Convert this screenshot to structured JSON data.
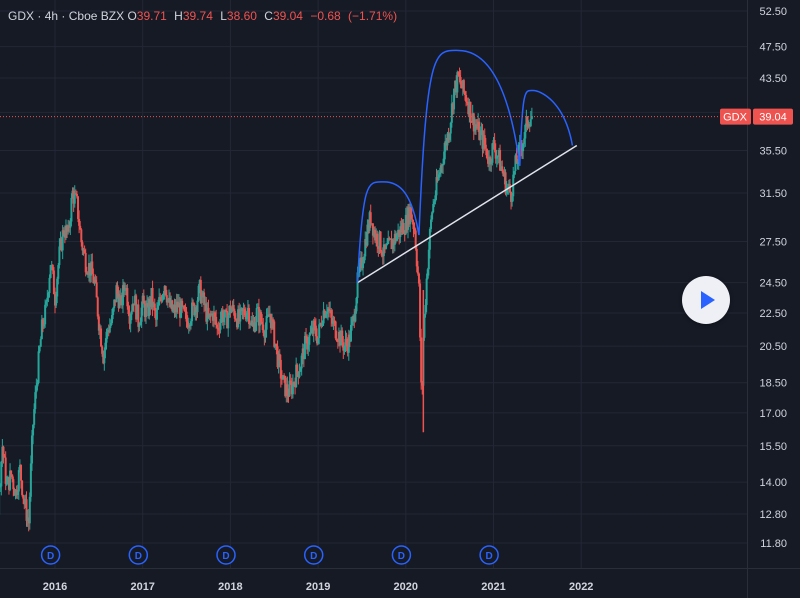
{
  "legend": {
    "symbol": "GDX",
    "interval": "4h",
    "exchange": "Cboe BZX",
    "open_label": "O",
    "open": "39.71",
    "high_label": "H",
    "high": "39.74",
    "low_label": "L",
    "low": "38.60",
    "close_label": "C",
    "close": "39.04",
    "change": "−0.68",
    "change_pct": "(−1.71%)"
  },
  "price_tag": {
    "symbol": "GDX",
    "value": "39.04"
  },
  "colors": {
    "up": "#26a69a",
    "down": "#ef5350",
    "background": "#161a25",
    "axis_text": "#d1d4dc",
    "arc": "#2962ff",
    "trendline": "#e0e3eb",
    "dividend": "#2962ff"
  },
  "icons": {
    "play": "play-icon"
  },
  "chart_data": {
    "type": "candlestick",
    "scale": "log",
    "y_ticks": [
      52.5,
      47.5,
      43.5,
      39.5,
      35.5,
      31.5,
      27.5,
      24.5,
      22.5,
      20.5,
      18.5,
      17.0,
      15.5,
      14.0,
      12.8,
      11.8
    ],
    "y_tick_labels": [
      "52.50",
      "47.50",
      "43.50",
      "39.50",
      "35.50",
      "31.50",
      "27.50",
      "24.50",
      "22.50",
      "20.50",
      "18.50",
      "17.00",
      "15.50",
      "14.00",
      "12.80",
      "11.80"
    ],
    "x_ticks": [
      "2016",
      "2017",
      "2018",
      "2019",
      "2020",
      "2021",
      "2022"
    ],
    "dividend_markers": [
      "D",
      "D",
      "D",
      "D",
      "D",
      "D"
    ],
    "dividend_years": [
      2015.95,
      2016.95,
      2017.95,
      2018.95,
      2019.95,
      2020.95
    ],
    "last_price": 39.04,
    "price_path": [
      [
        2015.0,
        20.5
      ],
      [
        2015.1,
        19.0
      ],
      [
        2015.15,
        15.5
      ],
      [
        2015.2,
        14.0
      ],
      [
        2015.25,
        13.5
      ],
      [
        2015.3,
        14.5
      ],
      [
        2015.35,
        13.0
      ],
      [
        2015.4,
        15.5
      ],
      [
        2015.45,
        13.8
      ],
      [
        2015.5,
        14.3
      ],
      [
        2015.55,
        13.6
      ],
      [
        2015.6,
        14.5
      ],
      [
        2015.65,
        13.2
      ],
      [
        2015.7,
        12.5
      ],
      [
        2015.75,
        16.5
      ],
      [
        2015.8,
        19.0
      ],
      [
        2015.85,
        21.5
      ],
      [
        2015.9,
        22.8
      ],
      [
        2015.95,
        26.0
      ],
      [
        2016.0,
        23.5
      ],
      [
        2016.05,
        26.5
      ],
      [
        2016.1,
        28.5
      ],
      [
        2016.15,
        28.0
      ],
      [
        2016.2,
        31.5
      ],
      [
        2016.25,
        30.5
      ],
      [
        2016.3,
        27.5
      ],
      [
        2016.35,
        26.0
      ],
      [
        2016.4,
        25.5
      ],
      [
        2016.45,
        24.5
      ],
      [
        2016.5,
        22.0
      ],
      [
        2016.55,
        20.0
      ],
      [
        2016.6,
        21.5
      ],
      [
        2016.65,
        22.0
      ],
      [
        2016.7,
        24.0
      ],
      [
        2016.75,
        23.0
      ],
      [
        2016.8,
        24.5
      ],
      [
        2016.85,
        22.5
      ],
      [
        2016.9,
        23.5
      ],
      [
        2016.95,
        22.0
      ],
      [
        2017.0,
        23.0
      ],
      [
        2017.05,
        22.5
      ],
      [
        2017.1,
        23.5
      ],
      [
        2017.15,
        22.0
      ],
      [
        2017.2,
        23.5
      ],
      [
        2017.25,
        24.5
      ],
      [
        2017.3,
        23.0
      ],
      [
        2017.35,
        22.5
      ],
      [
        2017.4,
        23.0
      ],
      [
        2017.45,
        22.5
      ],
      [
        2017.5,
        22.0
      ],
      [
        2017.55,
        22.5
      ],
      [
        2017.6,
        23.0
      ],
      [
        2017.65,
        24.0
      ],
      [
        2017.7,
        23.0
      ],
      [
        2017.75,
        22.0
      ],
      [
        2017.8,
        22.5
      ],
      [
        2017.85,
        21.5
      ],
      [
        2017.9,
        22.5
      ],
      [
        2017.95,
        22.0
      ],
      [
        2018.0,
        22.8
      ],
      [
        2018.05,
        22.5
      ],
      [
        2018.1,
        22.0
      ],
      [
        2018.15,
        22.5
      ],
      [
        2018.2,
        22.8
      ],
      [
        2018.25,
        21.5
      ],
      [
        2018.3,
        22.5
      ],
      [
        2018.35,
        22.0
      ],
      [
        2018.4,
        21.5
      ],
      [
        2018.45,
        22.5
      ],
      [
        2018.5,
        21.0
      ],
      [
        2018.55,
        19.5
      ],
      [
        2018.6,
        18.5
      ],
      [
        2018.65,
        18.0
      ],
      [
        2018.7,
        18.3
      ],
      [
        2018.75,
        19.0
      ],
      [
        2018.8,
        19.5
      ],
      [
        2018.85,
        20.5
      ],
      [
        2018.9,
        21.0
      ],
      [
        2018.95,
        21.5
      ],
      [
        2019.0,
        21.0
      ],
      [
        2019.05,
        22.5
      ],
      [
        2019.1,
        23.0
      ],
      [
        2019.15,
        22.0
      ],
      [
        2019.2,
        21.5
      ],
      [
        2019.25,
        21.0
      ],
      [
        2019.3,
        20.5
      ],
      [
        2019.35,
        20.8
      ],
      [
        2019.4,
        22.0
      ],
      [
        2019.45,
        24.5
      ],
      [
        2019.5,
        26.0
      ],
      [
        2019.55,
        28.0
      ],
      [
        2019.6,
        29.5
      ],
      [
        2019.65,
        28.0
      ],
      [
        2019.7,
        27.5
      ],
      [
        2019.75,
        26.5
      ],
      [
        2019.8,
        27.0
      ],
      [
        2019.85,
        27.5
      ],
      [
        2019.9,
        28.0
      ],
      [
        2019.95,
        28.5
      ],
      [
        2020.0,
        29.0
      ],
      [
        2020.05,
        30.0
      ],
      [
        2020.1,
        28.5
      ],
      [
        2020.15,
        24.0
      ],
      [
        2020.18,
        17.0
      ],
      [
        2020.2,
        21.0
      ],
      [
        2020.25,
        26.0
      ],
      [
        2020.3,
        30.0
      ],
      [
        2020.35,
        32.0
      ],
      [
        2020.4,
        34.0
      ],
      [
        2020.45,
        36.0
      ],
      [
        2020.5,
        38.0
      ],
      [
        2020.55,
        42.0
      ],
      [
        2020.6,
        43.5
      ],
      [
        2020.65,
        42.0
      ],
      [
        2020.7,
        41.0
      ],
      [
        2020.75,
        39.0
      ],
      [
        2020.8,
        38.0
      ],
      [
        2020.85,
        37.0
      ],
      [
        2020.9,
        36.0
      ],
      [
        2020.95,
        34.5
      ],
      [
        2021.0,
        36.0
      ],
      [
        2021.05,
        35.0
      ],
      [
        2021.1,
        33.5
      ],
      [
        2021.15,
        32.0
      ],
      [
        2021.2,
        31.5
      ],
      [
        2021.25,
        34.0
      ],
      [
        2021.3,
        35.5
      ],
      [
        2021.35,
        37.0
      ],
      [
        2021.4,
        39.0
      ],
      [
        2021.45,
        39.04
      ]
    ],
    "drawings": {
      "trendline": {
        "from": [
          2019.45,
          24.5
        ],
        "to": [
          2021.95,
          36.0
        ]
      },
      "arcs": [
        {
          "from": [
            2019.45,
            24.5
          ],
          "peak": [
            2019.75,
            32.5
          ],
          "to": [
            2020.15,
            28.0
          ]
        },
        {
          "from": [
            2020.15,
            28.0
          ],
          "peak": [
            2020.6,
            47.0
          ],
          "to": [
            2021.3,
            34.0
          ]
        },
        {
          "from": [
            2021.3,
            34.0
          ],
          "peak": [
            2021.45,
            42.0
          ],
          "to": [
            2021.9,
            36.0
          ]
        }
      ]
    }
  }
}
